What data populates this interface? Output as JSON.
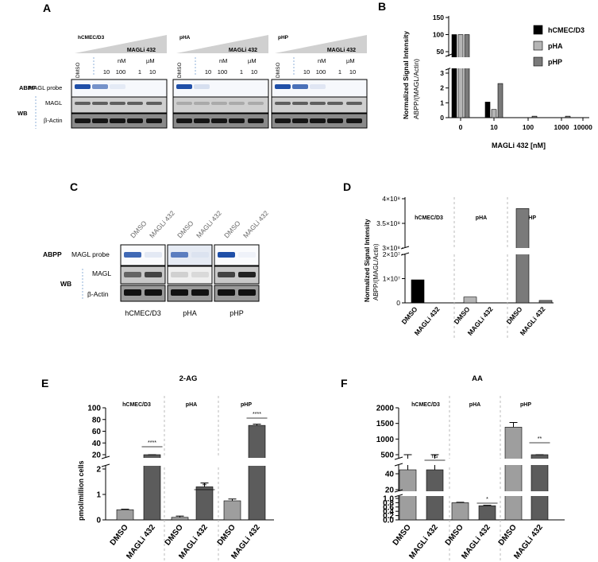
{
  "panels": {
    "A": "A",
    "B": "B",
    "C": "C",
    "D": "D",
    "E": "E",
    "F": "F"
  },
  "blots_A": {
    "groups": [
      {
        "cell": "hCMEC/D3",
        "lanes": [
          "DMSO",
          "10",
          "100",
          "1",
          "10"
        ]
      },
      {
        "cell": "pHA",
        "lanes": [
          "DMSO",
          "10",
          "100",
          "1",
          "10"
        ]
      },
      {
        "cell": "pHP",
        "lanes": [
          "DMSO",
          "10",
          "100",
          "1",
          "10"
        ]
      }
    ],
    "inhibitor": "MAGLi 432",
    "unit_nm": "nM",
    "unit_um": "µM",
    "row_labels": {
      "abpp": "ABPP",
      "wb": "WB",
      "probe": "MAGL probe",
      "magl": "MAGL",
      "actin": "β-Actin"
    }
  },
  "blots_C": {
    "lanes": [
      "DMSO",
      "MAGLi 432",
      "DMSO",
      "MAGLi 432",
      "DMSO",
      "MAGLi 432"
    ],
    "cells": [
      "hCMEC/D3",
      "pHA",
      "pHP"
    ],
    "row_labels": {
      "abpp": "ABPP",
      "wb": "WB",
      "probe": "MAGL probe",
      "magl": "MAGL",
      "actin": "β-Actin"
    }
  },
  "colors": {
    "hCMEC": "#000000",
    "pHA": "#b5b5b5",
    "pHP": "#7a7a7a",
    "dmso": "#9e9e9e",
    "magli": "#5c5c5c"
  },
  "chart_data": [
    {
      "panel": "B",
      "type": "bar",
      "ylabel": "Normalized Signal Intensity",
      "ylabel2": "ABPP/(MAGL/Actin)",
      "xlabel": "MAGLi 432 [nM]",
      "categories": [
        "0",
        "10",
        "100",
        "1000",
        "10000"
      ],
      "yticks": [
        "0",
        "1",
        "2",
        "3",
        "50",
        "100",
        "150"
      ],
      "series": [
        {
          "name": "hCMEC/D3",
          "values": [
            100,
            1.05,
            0,
            0,
            0
          ]
        },
        {
          "name": "pHA",
          "values": [
            100,
            0.55,
            0,
            0,
            0
          ]
        },
        {
          "name": "pHP",
          "values": [
            100,
            2.3,
            0.1,
            0.1,
            0
          ]
        }
      ],
      "legend": "top-right"
    },
    {
      "panel": "D",
      "type": "bar",
      "ylabel": "Normalized Signal Intensity",
      "ylabel2": "ABPP/(MAGL/Actin)",
      "groups": [
        "hCMEC/D3",
        "pHA",
        "pHP"
      ],
      "categories": [
        "DMSO",
        "MAGLi 432",
        "DMSO",
        "MAGLi 432",
        "DMSO",
        "MAGLi 432"
      ],
      "yticks": [
        "0",
        "1×10⁷",
        "2×10⁷",
        "3×10⁸",
        "3.5×10⁸",
        "4×10⁸"
      ],
      "values": [
        9500000,
        0,
        2400000,
        0,
        380000000,
        1000000
      ]
    },
    {
      "panel": "E",
      "type": "bar",
      "title": "2-AG",
      "ylabel": "pmol/million cells",
      "groups": [
        "hCMEC/D3",
        "pHA",
        "pHP"
      ],
      "categories": [
        "DMSO",
        "MAGLi 432",
        "DMSO",
        "MAGLi 432",
        "DMSO",
        "MAGLi 432"
      ],
      "yticks": [
        "0",
        "1",
        "2",
        "20",
        "40",
        "60",
        "80",
        "100"
      ],
      "values": [
        0.4,
        17,
        0.1,
        1.3,
        0.75,
        70
      ],
      "errors": [
        0.02,
        1,
        0.05,
        0.15,
        0.07,
        2
      ],
      "significance": [
        "****",
        "**",
        "****"
      ]
    },
    {
      "panel": "F",
      "type": "bar",
      "title": "AA",
      "ylabel": "pmol/million cells",
      "groups": [
        "hCMEC/D3",
        "pHA",
        "pHP"
      ],
      "categories": [
        "DMSO",
        "MAGLi 432",
        "DMSO",
        "MAGLi 432",
        "DMSO",
        "MAGLi 432"
      ],
      "yticks": [
        "0.0",
        "0.2",
        "0.4",
        "0.6",
        "0.8",
        "1.0",
        "20",
        "40",
        "500",
        "1000",
        "1500",
        "2000"
      ],
      "values": [
        45,
        45,
        0.8,
        0.66,
        1380,
        170
      ],
      "errors": [
        3,
        3,
        0.02,
        0.02,
        150,
        20
      ],
      "significance": [
        "ns",
        "*",
        "**"
      ]
    }
  ]
}
